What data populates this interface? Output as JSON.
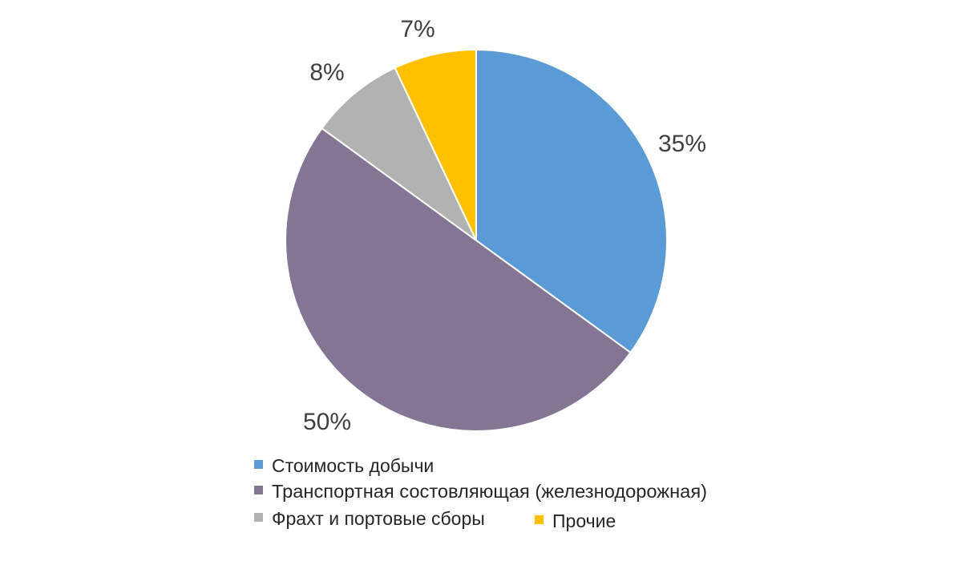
{
  "chart_data": {
    "type": "pie",
    "title": "",
    "slices": [
      {
        "label": "Стоимость добычи",
        "value": 35,
        "value_label": "35%",
        "color": "#5B9BD5"
      },
      {
        "label": "Транспортная состовляющая (железнодорожная)",
        "value": 50,
        "value_label": "50%",
        "color": "#857595"
      },
      {
        "label": "Фрахт и портовые сборы",
        "value": 8,
        "value_label": "8%",
        "color": "#B2B2B2"
      },
      {
        "label": "Прочие",
        "value": 7,
        "value_label": "7%",
        "color": "#FFC000"
      }
    ],
    "start_direction": "top",
    "direction": "clockwise",
    "legend_placement": "bottom"
  }
}
